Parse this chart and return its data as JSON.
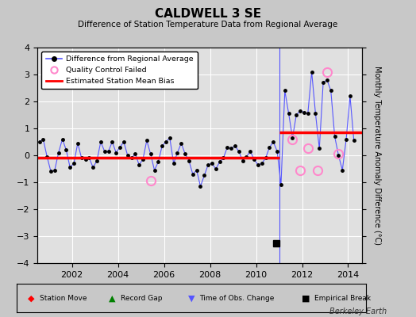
{
  "title": "CALDWELL 3 SE",
  "subtitle": "Difference of Station Temperature Data from Regional Average",
  "ylabel": "Monthly Temperature Anomaly Difference (°C)",
  "xlim": [
    2000.5,
    2014.6
  ],
  "ylim": [
    -4,
    4
  ],
  "yticks": [
    -4,
    -3,
    -2,
    -1,
    0,
    1,
    2,
    3,
    4
  ],
  "xticks": [
    2002,
    2004,
    2006,
    2008,
    2010,
    2012,
    2014
  ],
  "bias_y1": -0.08,
  "bias_y2": 0.85,
  "bias_x1_start": 2000.5,
  "bias_x1_end": 2011.0,
  "bias_x2_start": 2011.0,
  "bias_x2_end": 2014.6,
  "break_x": 2011.0,
  "empirical_break_x": 2010.87,
  "empirical_break_y": -3.25,
  "qc_failed_x": [
    2005.42,
    2011.58,
    2011.92,
    2012.25,
    2012.67,
    2013.08,
    2013.58
  ],
  "qc_failed_y": [
    -0.95,
    0.6,
    -0.55,
    0.25,
    -0.55,
    3.1,
    0.05
  ],
  "background_color": "#c8c8c8",
  "plot_bg_color": "#e0e0e0",
  "grid_color": "#ffffff",
  "line_color": "#5555ff",
  "bias_color": "#ff0000",
  "qc_color": "#ff88cc",
  "marker_color": "#000000",
  "watermark": "Berkeley Earth",
  "series_x": [
    2000.583,
    2000.75,
    2000.917,
    2001.083,
    2001.25,
    2001.417,
    2001.583,
    2001.75,
    2001.917,
    2002.083,
    2002.25,
    2002.417,
    2002.583,
    2002.75,
    2002.917,
    2003.083,
    2003.25,
    2003.417,
    2003.583,
    2003.75,
    2003.917,
    2004.083,
    2004.25,
    2004.417,
    2004.583,
    2004.75,
    2004.917,
    2005.083,
    2005.25,
    2005.417,
    2005.583,
    2005.75,
    2005.917,
    2006.083,
    2006.25,
    2006.417,
    2006.583,
    2006.75,
    2006.917,
    2007.083,
    2007.25,
    2007.417,
    2007.583,
    2007.75,
    2007.917,
    2008.083,
    2008.25,
    2008.417,
    2008.583,
    2008.75,
    2008.917,
    2009.083,
    2009.25,
    2009.417,
    2009.583,
    2009.75,
    2009.917,
    2010.083,
    2010.25,
    2010.417,
    2010.583,
    2010.75,
    2010.917,
    2011.083,
    2011.25,
    2011.417,
    2011.583,
    2011.75,
    2011.917,
    2012.083,
    2012.25,
    2012.417,
    2012.583,
    2012.75,
    2012.917,
    2013.083,
    2013.25,
    2013.417,
    2013.583,
    2013.75,
    2013.917,
    2014.083,
    2014.25
  ],
  "series_y": [
    0.5,
    0.6,
    -0.05,
    -0.6,
    -0.55,
    0.1,
    0.6,
    0.2,
    -0.45,
    -0.3,
    0.45,
    -0.1,
    -0.15,
    -0.1,
    -0.45,
    -0.2,
    0.5,
    0.15,
    0.15,
    0.5,
    0.1,
    0.3,
    0.5,
    0.0,
    -0.1,
    0.05,
    -0.35,
    -0.15,
    0.55,
    0.05,
    -0.55,
    -0.25,
    0.35,
    0.5,
    0.65,
    -0.3,
    0.1,
    0.45,
    0.05,
    -0.2,
    -0.7,
    -0.55,
    -1.15,
    -0.75,
    -0.35,
    -0.3,
    -0.5,
    -0.25,
    -0.1,
    0.3,
    0.25,
    0.35,
    0.15,
    -0.2,
    -0.05,
    0.15,
    -0.15,
    -0.35,
    -0.3,
    -0.1,
    0.3,
    0.5,
    0.15,
    -1.1,
    2.4,
    1.55,
    0.65,
    1.5,
    1.65,
    1.6,
    1.55,
    3.1,
    1.55,
    0.25,
    2.7,
    2.8,
    2.4,
    0.7,
    0.0,
    -0.55,
    0.6,
    2.2,
    0.55
  ]
}
